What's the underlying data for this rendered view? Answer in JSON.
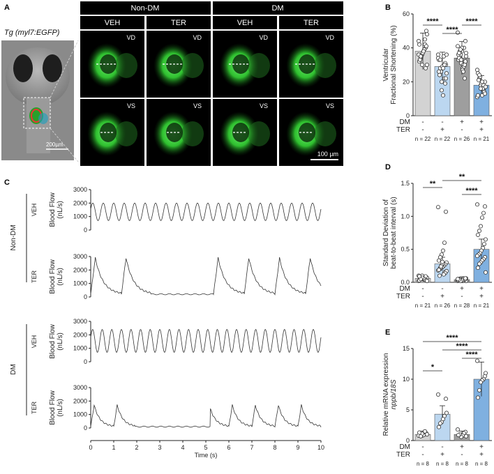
{
  "panel_labels": {
    "a": "A",
    "b": "B",
    "c": "C",
    "d": "D",
    "e": "E"
  },
  "panel_a": {
    "fish_label": "Tg (myl7:EGFP)",
    "fish_scale": "200µm",
    "group_headers": [
      "Non-DM",
      "DM"
    ],
    "col_headers": [
      "VEH",
      "TER",
      "VEH",
      "TER"
    ],
    "row_tags": [
      "VD",
      "VS"
    ],
    "scale_bar": "100 µm"
  },
  "panel_b": {
    "ylabel_lines": [
      "Ventricular",
      "Fractional Shortening (%)"
    ],
    "yticks": [
      "0",
      "20",
      "40",
      "60"
    ],
    "sig": [
      "****",
      "****",
      "****"
    ],
    "row1_label": "DM",
    "row2_label": "TER",
    "row1": [
      "-",
      "-",
      "+",
      "+"
    ],
    "row2": [
      "-",
      "+",
      "-",
      "+"
    ],
    "n": [
      "n = 22",
      "n = 22",
      "n = 26",
      "n = 21"
    ]
  },
  "panel_d": {
    "ylabel_lines": [
      "Standard Deviation of",
      "beat-to-beat interval (s)"
    ],
    "yticks": [
      "0.0",
      "0.5",
      "1.0",
      "1.5"
    ],
    "sig": [
      "**",
      "**",
      "****"
    ],
    "row1_label": "DM",
    "row2_label": "TER",
    "row1": [
      "-",
      "-",
      "+",
      "+"
    ],
    "row2": [
      "-",
      "+",
      "-",
      "+"
    ],
    "n": [
      "n = 21",
      "n = 26",
      "n = 28",
      "n = 21"
    ]
  },
  "panel_e": {
    "ylabel_lines": [
      "Relative mRNA expression",
      "nppb/18S"
    ],
    "yticks": [
      "0",
      "5",
      "10",
      "15"
    ],
    "sig": [
      "*",
      "****",
      "****",
      "****"
    ],
    "row1_label": "DM",
    "row2_label": "TER",
    "row1": [
      "-",
      "-",
      "+",
      "+"
    ],
    "row2": [
      "-",
      "+",
      "-",
      "+"
    ],
    "n": [
      "n = 8",
      "n = 8",
      "n = 8",
      "n = 8"
    ]
  },
  "panel_c": {
    "group_labels": [
      "Non-DM",
      "DM"
    ],
    "trace_labels": [
      "VEH",
      "TER",
      "VEH",
      "TER"
    ],
    "ylabel_lines": [
      "Blood Flow",
      "(nL/s)"
    ],
    "yticks": [
      "0",
      "1000",
      "2000",
      "3000"
    ],
    "xticks": [
      "0",
      "1",
      "2",
      "3",
      "4",
      "5",
      "6",
      "7",
      "8",
      "9",
      "10"
    ],
    "xlabel": "Time (s)"
  },
  "chart_data": [
    {
      "type": "bar",
      "panel": "B",
      "ylim": [
        0,
        60
      ],
      "categories": [
        "DM- TER-",
        "DM- TER+",
        "DM+ TER-",
        "DM+ TER+"
      ],
      "values": [
        38,
        29,
        34,
        18
      ],
      "colors": [
        "#d3d3d3",
        "#bcd7f0",
        "#9e9e9e",
        "#7fb0e0"
      ]
    },
    {
      "type": "bar",
      "panel": "D",
      "ylim": [
        0,
        1.5
      ],
      "categories": [
        "DM- TER-",
        "DM- TER+",
        "DM+ TER-",
        "DM+ TER+"
      ],
      "values": [
        0.06,
        0.28,
        0.04,
        0.5
      ],
      "colors": [
        "#d3d3d3",
        "#bcd7f0",
        "#9e9e9e",
        "#7fb0e0"
      ]
    },
    {
      "type": "bar",
      "panel": "E",
      "ylim": [
        0,
        15
      ],
      "categories": [
        "DM- TER-",
        "DM- TER+",
        "DM+ TER-",
        "DM+ TER+"
      ],
      "values": [
        1,
        4.3,
        1,
        10
      ],
      "colors": [
        "#d3d3d3",
        "#bcd7f0",
        "#9e9e9e",
        "#7fb0e0"
      ]
    },
    {
      "type": "line",
      "panel": "C",
      "xlim": [
        0,
        10
      ],
      "ylim": [
        0,
        3000
      ],
      "series": [
        {
          "beats_per_s": 2.2,
          "peak": 2000,
          "trough": 700
        },
        {
          "beats_per_s": 0.75,
          "peak": 2900,
          "trough": 200
        },
        {
          "beats_per_s": 2.4,
          "peak": 2400,
          "trough": 700
        },
        {
          "beats_per_s": 1.0,
          "peak": 1700,
          "trough": 100
        }
      ]
    }
  ]
}
